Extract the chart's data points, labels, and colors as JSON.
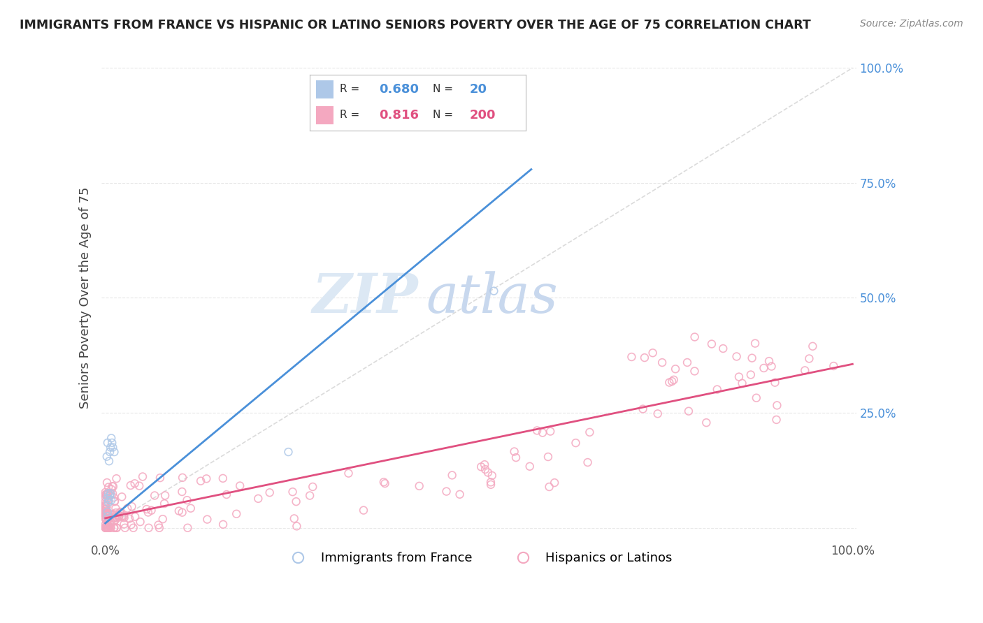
{
  "title": "IMMIGRANTS FROM FRANCE VS HISPANIC OR LATINO SENIORS POVERTY OVER THE AGE OF 75 CORRELATION CHART",
  "source": "Source: ZipAtlas.com",
  "ylabel": "Seniors Poverty Over the Age of 75",
  "r_blue": 0.68,
  "n_blue": 20,
  "r_pink": 0.816,
  "n_pink": 200,
  "blue_scatter_color": "#aec8e8",
  "blue_line_color": "#4a90d9",
  "pink_scatter_color": "#f4a8c0",
  "pink_line_color": "#e05080",
  "diagonal_color": "#cccccc",
  "bg_color": "#ffffff",
  "grid_color": "#e8e8e8",
  "ytick_color": "#4a90d9",
  "title_color": "#222222",
  "source_color": "#888888",
  "legend_blue_rect": "#aec8e8",
  "legend_pink_rect": "#f4a8c0"
}
